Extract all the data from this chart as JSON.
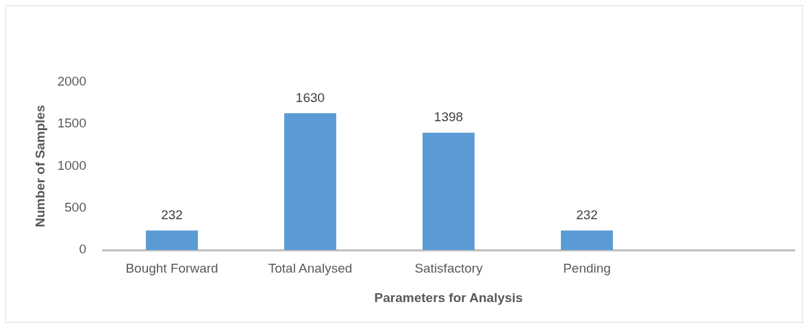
{
  "chart_data": {
    "type": "bar",
    "xlabel": "Parameters for Analysis",
    "ylabel": "Number of Samples",
    "categories": [
      "Bought Forward",
      "Total Analysed",
      "Satisfactory",
      "Pending",
      null
    ],
    "values": [
      232,
      1630,
      1398,
      232,
      null
    ],
    "color": "#5b9bd5",
    "ylim": [
      0,
      2000
    ],
    "yticks": [
      0,
      500,
      1000,
      1500,
      2000
    ],
    "data_labels": true
  }
}
